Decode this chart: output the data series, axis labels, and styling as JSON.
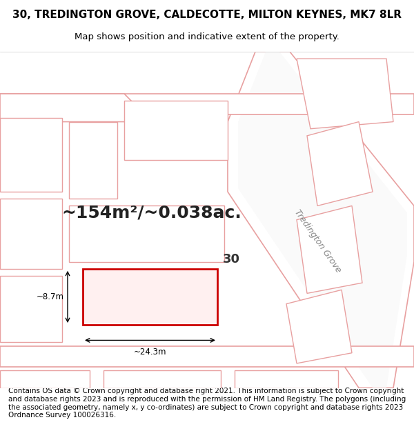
{
  "title_line1": "30, TREDINGTON GROVE, CALDECOTTE, MILTON KEYNES, MK7 8LR",
  "title_line2": "Map shows position and indicative extent of the property.",
  "footer": "Contains OS data © Crown copyright and database right 2021. This information is subject to Crown copyright and database rights 2023 and is reproduced with the permission of HM Land Registry. The polygons (including the associated geometry, namely x, y co-ordinates) are subject to Crown copyright and database rights 2023 Ordnance Survey 100026316.",
  "area_text": "~154m²/~0.038ac.",
  "dim_width": "~24.3m",
  "dim_height": "~8.7m",
  "number_label": "30",
  "background_color": "#ffffff",
  "map_bg_color": "#f5f5f5",
  "road_fill": "#ffffff",
  "plot_outline_color": "#cc0000",
  "plot_fill_color": "#ffffff",
  "road_line_color": "#e8a0a0",
  "building_line_color": "#e8a0a0",
  "building_fill_color": "#ffffff",
  "street_label_color": "#888888",
  "dim_color": "#000000",
  "area_fontsize": 18,
  "title_fontsize": 11,
  "footer_fontsize": 7.5,
  "map_region": [
    0.0,
    0.08,
    1.0,
    0.82
  ]
}
